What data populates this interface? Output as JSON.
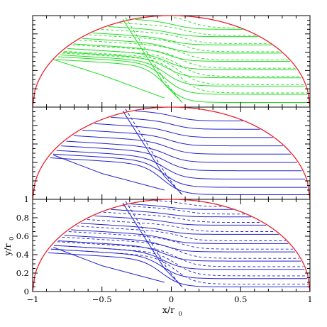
{
  "chart_data": {
    "type": "line",
    "description_axes": {
      "xlim": [
        -1,
        1
      ],
      "ylim": [
        0,
        1
      ],
      "xticks": [
        "-1",
        "-0.5",
        "0",
        "0.5",
        "1"
      ],
      "yticks": [
        "0",
        "0.2",
        "0.4",
        "0.6",
        "0.8",
        "1"
      ],
      "xlabel_main": "x/r",
      "xlabel_sub": "0",
      "ylabel_main": "y/r",
      "ylabel_sub": "0"
    },
    "colors": {
      "boundary": "#e8202a",
      "top_panel": "#22dd22",
      "mid_panel": "#2222cc",
      "bottom_panel": "#2222cc",
      "frame": "#000000"
    },
    "boundary": "unit semicircle y = sqrt(1 - x^2)",
    "panels": [
      {
        "name": "top",
        "streamlines": [
          {
            "left_y": 0.52,
            "right_y": 0.05,
            "solid_only": true
          },
          {
            "left_y": 0.55,
            "right_y": 0.14
          },
          {
            "left_y": 0.57,
            "right_y": 0.23
          },
          {
            "left_y": 0.6,
            "right_y": 0.32
          },
          {
            "left_y": 0.64,
            "right_y": 0.41
          },
          {
            "left_y": 0.69,
            "right_y": 0.5
          },
          {
            "left_y": 0.75,
            "right_y": 0.59
          },
          {
            "left_y": 0.81,
            "right_y": 0.68
          },
          {
            "left_y": 0.88,
            "right_y": 0.77
          },
          {
            "left_y": 0.96,
            "right_y": 0.85
          }
        ],
        "front_solid": [
          [
            -0.85,
            0.52
          ],
          [
            -0.32,
            0.98
          ],
          [
            0.08,
            0.05
          ]
        ],
        "front_dashed": [
          [
            -0.33,
            0.98
          ],
          [
            0.06,
            0.06
          ]
        ]
      },
      {
        "name": "middle",
        "streamlines": [
          {
            "left_y": 0.45,
            "right_y": 0.05
          },
          {
            "left_y": 0.49,
            "right_y": 0.13
          },
          {
            "left_y": 0.53,
            "right_y": 0.22
          },
          {
            "left_y": 0.58,
            "right_y": 0.31
          },
          {
            "left_y": 0.63,
            "right_y": 0.4
          },
          {
            "left_y": 0.69,
            "right_y": 0.49
          },
          {
            "left_y": 0.75,
            "right_y": 0.58
          },
          {
            "left_y": 0.82,
            "right_y": 0.67
          },
          {
            "left_y": 0.89,
            "right_y": 0.76
          },
          {
            "left_y": 0.96,
            "right_y": 0.85
          }
        ]
      },
      {
        "name": "bottom",
        "streamlines": [
          {
            "left_y": 0.42,
            "right_y": 0.05
          },
          {
            "left_y": 0.46,
            "right_y": 0.14
          },
          {
            "left_y": 0.5,
            "right_y": 0.24
          },
          {
            "left_y": 0.55,
            "right_y": 0.33
          },
          {
            "left_y": 0.61,
            "right_y": 0.43
          },
          {
            "left_y": 0.67,
            "right_y": 0.52
          },
          {
            "left_y": 0.74,
            "right_y": 0.62
          },
          {
            "left_y": 0.82,
            "right_y": 0.72
          },
          {
            "left_y": 0.89,
            "right_y": 0.81
          },
          {
            "left_y": 0.95,
            "right_y": 0.89
          }
        ]
      }
    ]
  }
}
